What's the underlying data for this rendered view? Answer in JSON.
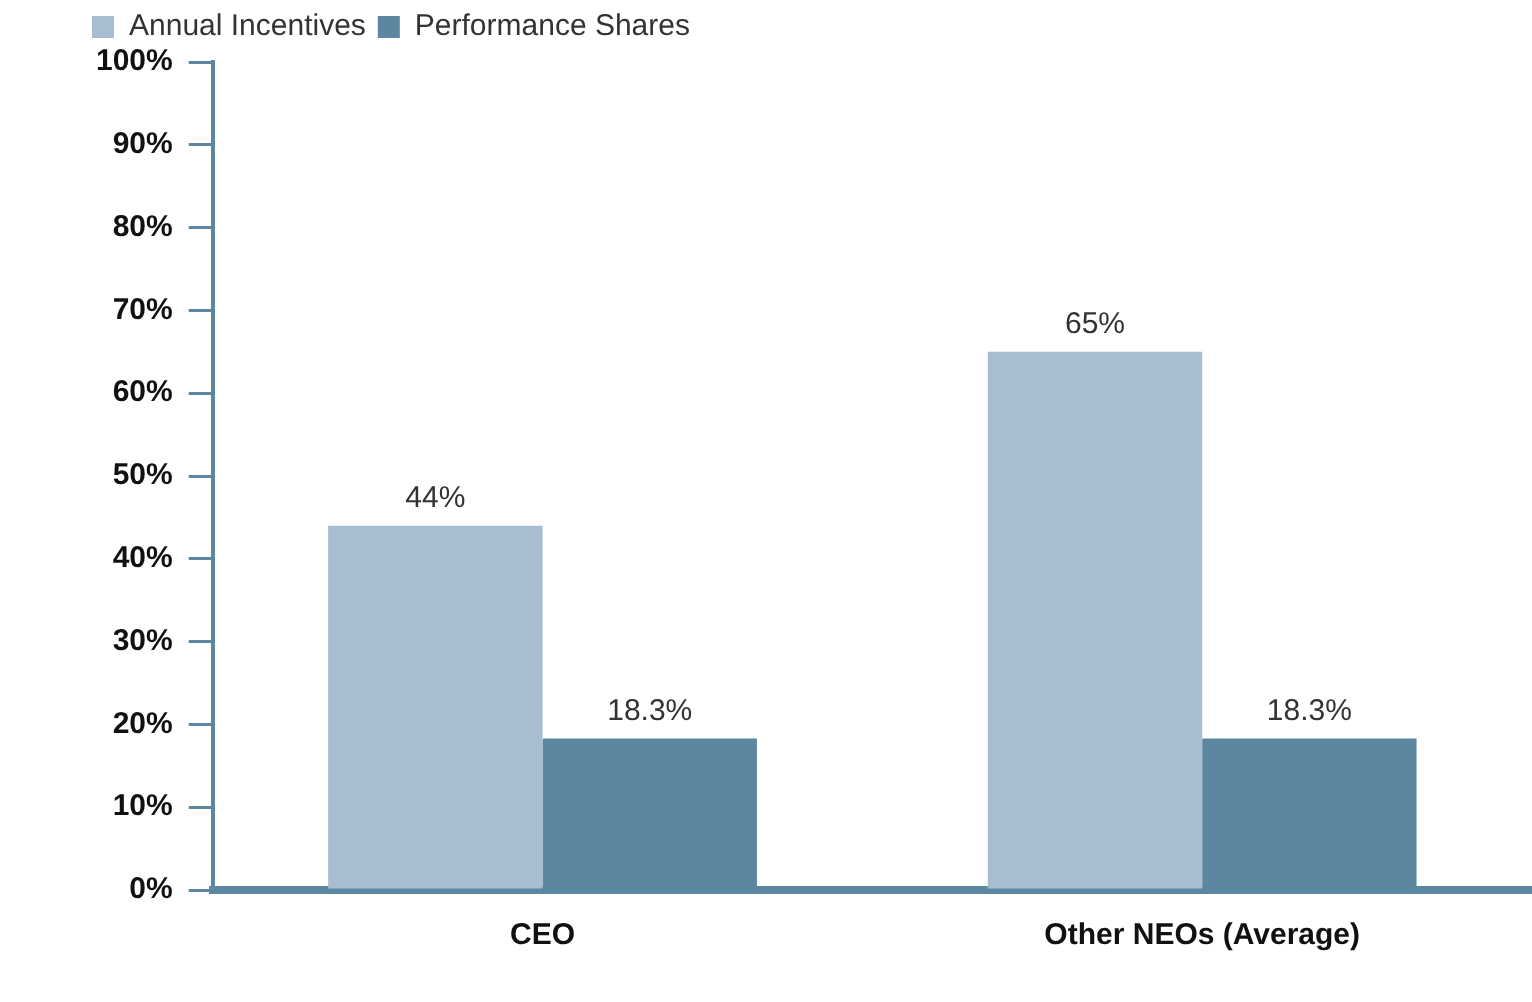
{
  "chart_data": {
    "type": "bar",
    "categories": [
      "CEO",
      "Other NEOs (Average)"
    ],
    "series": [
      {
        "name": "Annual Incentives",
        "color": "#a8bdcf",
        "values": [
          44,
          65
        ],
        "value_labels": [
          "44%",
          "65%"
        ]
      },
      {
        "name": "Performance Shares",
        "color": "#5b87a0",
        "values": [
          18.3,
          18.3
        ],
        "value_labels": [
          "18.3%",
          "18.3%"
        ]
      }
    ],
    "ylim": [
      0,
      100
    ],
    "yticks": [
      {
        "value": 0,
        "label": "0%"
      },
      {
        "value": 10,
        "label": "10%"
      },
      {
        "value": 20,
        "label": "20%"
      },
      {
        "value": 30,
        "label": "30%"
      },
      {
        "value": 40,
        "label": "40%"
      },
      {
        "value": 50,
        "label": "50%"
      },
      {
        "value": 60,
        "label": "60%"
      },
      {
        "value": 70,
        "label": "70%"
      },
      {
        "value": 80,
        "label": "80%"
      },
      {
        "value": 90,
        "label": "90%"
      },
      {
        "value": 100,
        "label": "100%"
      }
    ],
    "grid": false,
    "legend": "top left"
  }
}
